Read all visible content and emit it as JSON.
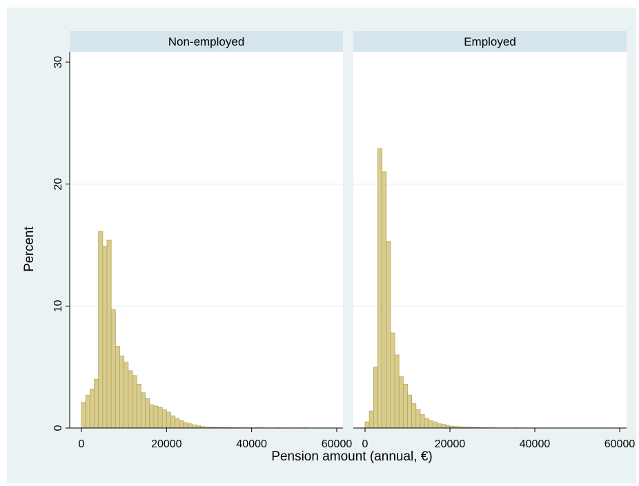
{
  "chart_data": [
    {
      "type": "bar",
      "title": "Non-employed",
      "xlabel": "Pension amount (annual, €)",
      "ylabel": "Percent",
      "xlim": [
        0,
        60000
      ],
      "ylim": [
        0,
        30
      ],
      "x_ticks": [
        "0",
        "20000",
        "40000",
        "60000"
      ],
      "y_ticks": [
        "0",
        "10",
        "20",
        "30"
      ],
      "grid": true,
      "bin_width": 1000,
      "bin_starts": [
        0,
        1000,
        2000,
        3000,
        4000,
        5000,
        6000,
        7000,
        8000,
        9000,
        10000,
        11000,
        12000,
        13000,
        14000,
        15000,
        16000,
        17000,
        18000,
        19000,
        20000,
        21000,
        22000,
        23000,
        24000,
        25000,
        26000,
        27000,
        28000,
        29000,
        30000,
        31000,
        32000,
        33000,
        34000,
        35000,
        36000,
        37000,
        38000,
        39000,
        40000,
        41000,
        42000,
        43000,
        44000,
        45000,
        46000,
        47000,
        48000,
        49000,
        50000,
        51000,
        52000,
        53000,
        54000,
        55000,
        56000,
        57000,
        58000,
        59000
      ],
      "values": [
        2.1,
        2.7,
        3.2,
        4.0,
        16.1,
        14.9,
        15.4,
        9.7,
        6.7,
        5.9,
        5.4,
        4.7,
        4.3,
        3.6,
        2.9,
        2.4,
        1.9,
        1.8,
        1.7,
        1.5,
        1.3,
        1.0,
        0.8,
        0.6,
        0.45,
        0.35,
        0.25,
        0.18,
        0.12,
        0.08,
        0.06,
        0.05,
        0.04,
        0.04,
        0.03,
        0.03,
        0.03,
        0.02,
        0.02,
        0.02,
        0.02,
        0.02,
        0.02,
        0.01,
        0.01,
        0.01,
        0.02,
        0.01,
        0.01,
        0.01,
        0.01,
        0.01,
        0.02,
        0.0,
        0.0,
        0.0,
        0.0,
        0.0,
        0.0,
        0.0
      ]
    },
    {
      "type": "bar",
      "title": "Employed",
      "xlabel": "Pension amount (annual, €)",
      "ylabel": "Percent",
      "xlim": [
        0,
        60000
      ],
      "ylim": [
        0,
        30
      ],
      "x_ticks": [
        "0",
        "20000",
        "40000",
        "60000"
      ],
      "y_ticks": [
        "0",
        "10",
        "20",
        "30"
      ],
      "grid": true,
      "bin_width": 1000,
      "bin_starts": [
        0,
        1000,
        2000,
        3000,
        4000,
        5000,
        6000,
        7000,
        8000,
        9000,
        10000,
        11000,
        12000,
        13000,
        14000,
        15000,
        16000,
        17000,
        18000,
        19000,
        20000,
        21000,
        22000,
        23000,
        24000,
        25000,
        26000,
        27000,
        28000,
        29000,
        30000,
        31000,
        32000,
        33000,
        34000,
        35000,
        36000,
        37000,
        38000,
        39000,
        40000,
        41000,
        42000,
        43000,
        44000,
        45000,
        46000,
        47000,
        48000,
        49000,
        50000,
        51000,
        52000,
        53000,
        54000,
        55000,
        56000,
        57000,
        58000,
        59000
      ],
      "values": [
        0.5,
        1.4,
        5.0,
        22.9,
        21.0,
        15.3,
        7.8,
        6.0,
        4.2,
        3.6,
        2.7,
        2.0,
        1.5,
        1.1,
        0.8,
        0.6,
        0.5,
        0.35,
        0.3,
        0.2,
        0.15,
        0.12,
        0.1,
        0.08,
        0.06,
        0.05,
        0.04,
        0.03,
        0.03,
        0.02,
        0.02,
        0.01,
        0.01,
        0.01,
        0.01,
        0.02,
        0.01,
        0.01,
        0.01,
        0.01,
        0.0,
        0.0,
        0.0,
        0.0,
        0.0,
        0.0,
        0.0,
        0.0,
        0.0,
        0.0,
        0.0,
        0.0,
        0.0,
        0.0,
        0.0,
        0.0,
        0.0,
        0.0,
        0.0,
        0.0
      ]
    }
  ],
  "colors": {
    "background": "#eaf2f3",
    "panel": "#ffffff",
    "strip": "#d6e4ec",
    "bar_fill": "#d9cd8d",
    "bar_stroke": "#b3a45e",
    "grid": "#e6ecee"
  },
  "labels": {
    "ylabel": "Percent",
    "xlabel": "Pension amount (annual, €)"
  }
}
